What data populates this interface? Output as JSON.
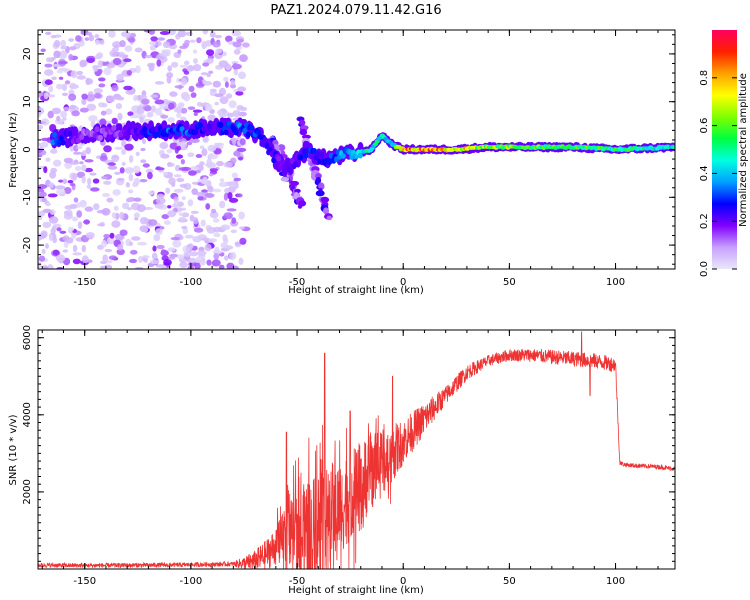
{
  "figure": {
    "title": "PAZ1.2024.079.11.42.G16"
  },
  "chart_data": [
    {
      "type": "heatmap",
      "xlabel": "Height of straight line (km)",
      "ylabel": "Frequency (Hz)",
      "xlim": [
        -172,
        128
      ],
      "ylim": [
        -25,
        25
      ],
      "xticks": [
        -150,
        -100,
        -50,
        0,
        50,
        100
      ],
      "yticks": [
        -20,
        -10,
        0,
        10,
        20
      ],
      "colorbar": {
        "label": "Normalized spectral amplitude",
        "range": [
          0,
          1
        ],
        "ticks": [
          0.0,
          0.2,
          0.4,
          0.6,
          0.8
        ],
        "tick_labels": [
          "0.0",
          "0.2",
          "0.4",
          "0.6",
          "0.8"
        ],
        "colormap": [
          "#e8e8f8",
          "#c8a0ff",
          "#8000ff",
          "#0000ff",
          "#00a0ff",
          "#00ffe0",
          "#00ff40",
          "#80ff00",
          "#ffff00",
          "#ffa000",
          "#ff2000",
          "#ff0060"
        ]
      },
      "features": {
        "noise_region_x": [
          -172,
          -78
        ],
        "carrier_track": [
          {
            "x": -165,
            "f": 2.0,
            "amp": 0.35
          },
          {
            "x": -150,
            "f": 3.0,
            "amp": 0.15
          },
          {
            "x": -130,
            "f": 4.0,
            "amp": 0.2
          },
          {
            "x": -115,
            "f": 4.0,
            "amp": 0.35
          },
          {
            "x": -103,
            "f": 4.0,
            "amp": 0.35
          },
          {
            "x": -90,
            "f": 4.5,
            "amp": 0.25
          },
          {
            "x": -75,
            "f": 4.5,
            "amp": 0.4
          },
          {
            "x": -68,
            "f": 3.0,
            "amp": 0.3
          },
          {
            "x": -60,
            "f": -2.0,
            "amp": 0.25
          },
          {
            "x": -55,
            "f": -4.0,
            "amp": 0.2
          },
          {
            "x": -45,
            "f": 0.0,
            "amp": 0.3
          },
          {
            "x": -38,
            "f": -2.0,
            "amp": 0.3
          },
          {
            "x": -25,
            "f": -1.0,
            "amp": 0.45
          },
          {
            "x": -15,
            "f": 0.0,
            "amp": 0.55
          },
          {
            "x": -10,
            "f": 3.0,
            "amp": 0.5
          },
          {
            "x": -5,
            "f": 1.0,
            "amp": 0.5
          },
          {
            "x": 0,
            "f": 0.0,
            "amp": 0.9
          },
          {
            "x": 12,
            "f": 0.0,
            "amp": 0.95
          },
          {
            "x": 25,
            "f": 0.0,
            "amp": 0.85
          },
          {
            "x": 40,
            "f": 0.5,
            "amp": 0.7
          },
          {
            "x": 60,
            "f": 0.5,
            "amp": 0.65
          },
          {
            "x": 80,
            "f": 0.5,
            "amp": 0.6
          },
          {
            "x": 100,
            "f": 0.0,
            "amp": 0.6
          },
          {
            "x": 128,
            "f": 0.5,
            "amp": 0.5
          }
        ],
        "streaks": [
          {
            "x0": -58,
            "f0": 0.0,
            "x1": -48,
            "f1": -12.0
          },
          {
            "x0": -48,
            "f0": 6.0,
            "x1": -35,
            "f1": -15.0
          },
          {
            "x0": -62,
            "f0": 2.0,
            "x1": -55,
            "f1": -6.0
          }
        ]
      }
    },
    {
      "type": "line",
      "xlabel": "Height of straight line (km)",
      "ylabel": "SNR (10 * v/v)",
      "xlim": [
        -172,
        128
      ],
      "ylim": [
        0,
        6200
      ],
      "xticks": [
        -150,
        -100,
        -50,
        0,
        50,
        100
      ],
      "yticks": [
        2000,
        4000,
        6000
      ],
      "color": "#ee3333",
      "trend": {
        "x": [
          -172,
          -150,
          -120,
          -100,
          -90,
          -80,
          -75,
          -70,
          -65,
          -60,
          -55,
          -50,
          -45,
          -40,
          -35,
          -30,
          -25,
          -20,
          -15,
          -10,
          -5,
          0,
          10,
          20,
          30,
          40,
          50,
          60,
          70,
          80,
          90,
          95,
          100,
          102,
          105,
          110,
          120,
          128
        ],
        "y": [
          100,
          90,
          100,
          110,
          120,
          130,
          150,
          200,
          350,
          600,
          800,
          900,
          800,
          1200,
          1400,
          1600,
          1900,
          2200,
          2500,
          2800,
          3000,
          3300,
          3900,
          4500,
          5100,
          5400,
          5550,
          5550,
          5500,
          5450,
          5400,
          5350,
          5300,
          2750,
          2700,
          2680,
          2650,
          2600
        ],
        "noise": {
          "x": [
            -172,
            -80,
            -60,
            -45,
            -20,
            0,
            20,
            40,
            80,
            100,
            102,
            128
          ],
          "amp": [
            60,
            60,
            500,
            1500,
            1100,
            600,
            250,
            150,
            200,
            200,
            60,
            60
          ]
        }
      },
      "spikes": [
        {
          "x": -55,
          "y": 3550
        },
        {
          "x": -37,
          "y": 5600
        },
        {
          "x": -25,
          "y": 4100
        },
        {
          "x": -5,
          "y": 5000
        },
        {
          "x": 84,
          "y": 6150
        },
        {
          "x": 88,
          "y": 4500
        }
      ]
    }
  ]
}
